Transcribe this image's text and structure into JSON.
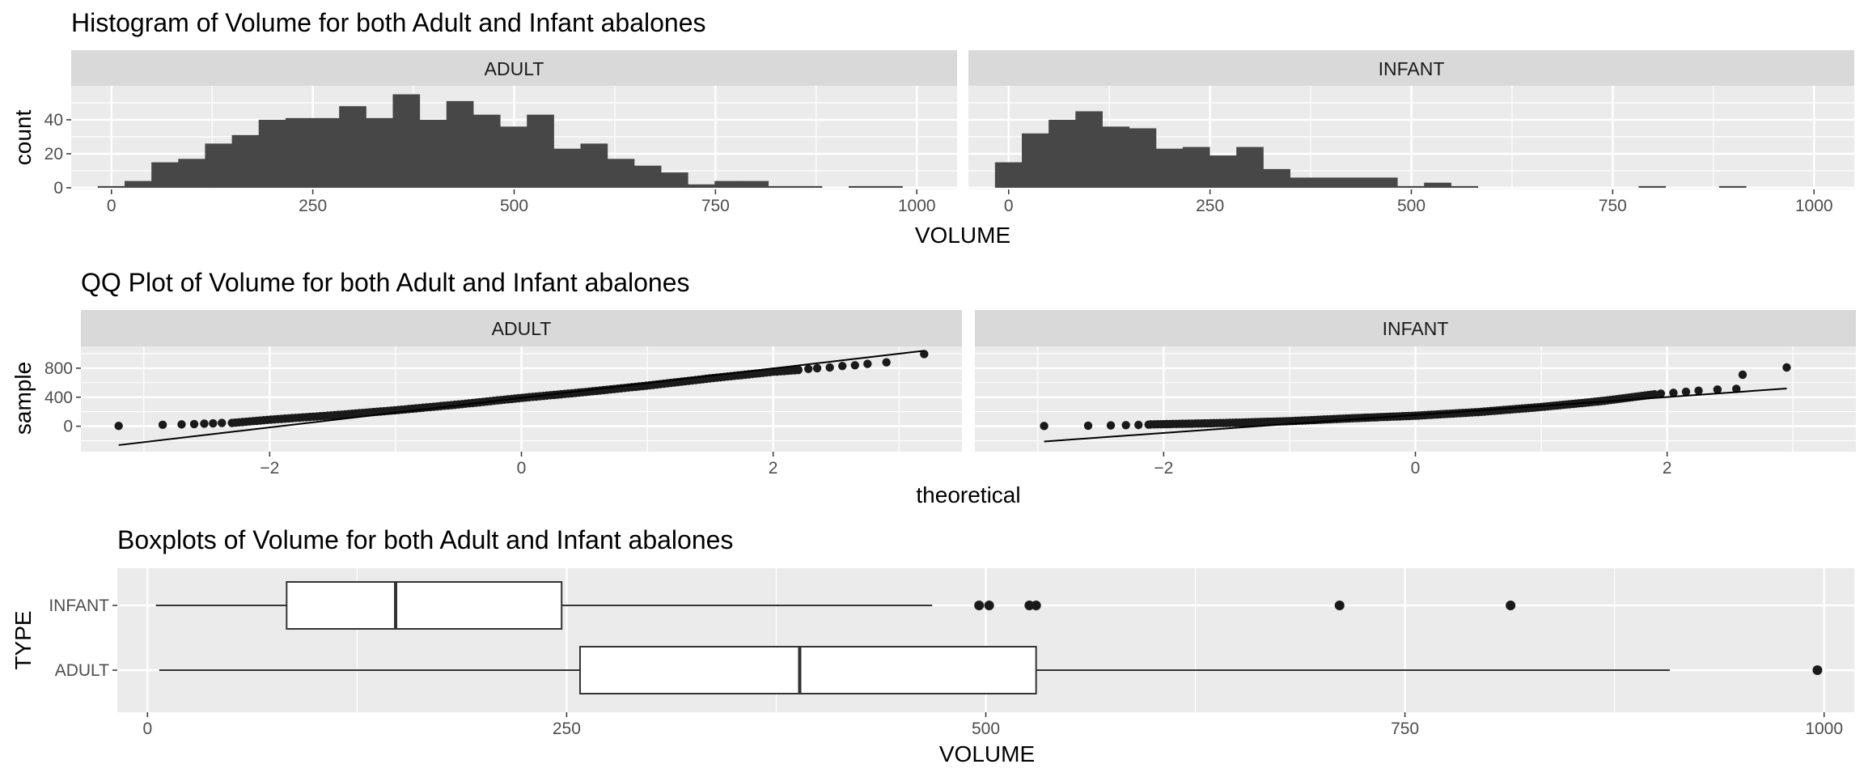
{
  "colors": {
    "panel_bg": "#EBEBEB",
    "strip_bg": "#D9D9D9",
    "grid": "#FFFFFF",
    "bar_fill": "#474747",
    "point": "#1a1a1a",
    "line": "#000000",
    "box_fill": "#FFFFFF"
  },
  "chart_data": [
    {
      "type": "bar",
      "subtype": "histogram",
      "title": "Histogram of Volume for both Adult and Infant abalones",
      "xlabel": "VOLUME",
      "ylabel": "count",
      "xlim": [
        -50,
        1050
      ],
      "ylim": [
        0,
        60
      ],
      "x_ticks": [
        0,
        250,
        500,
        750,
        1000
      ],
      "y_ticks": [
        0,
        20,
        40
      ],
      "bin_width": 33.3,
      "grid": true,
      "facets": [
        {
          "name": "ADULT",
          "bin_start": -17,
          "counts": [
            1,
            4,
            15,
            17,
            26,
            31,
            40,
            41,
            41,
            48,
            41,
            55,
            40,
            51,
            43,
            36,
            43,
            23,
            26,
            17,
            13,
            9,
            2,
            4,
            4,
            1,
            1,
            0,
            1,
            1
          ]
        },
        {
          "name": "INFANT",
          "bin_start": -17,
          "counts": [
            15,
            32,
            40,
            45,
            36,
            35,
            23,
            24,
            19,
            24,
            11,
            6,
            6,
            6,
            6,
            1,
            3,
            1,
            0,
            0,
            0,
            0,
            0,
            0,
            1,
            0,
            0,
            1,
            0,
            0
          ]
        }
      ]
    },
    {
      "type": "scatter",
      "subtype": "qq",
      "title": "QQ Plot of Volume for both Adult and Infant abalones",
      "xlabel": "theoretical",
      "ylabel": "sample",
      "xlim": [
        -3.5,
        3.5
      ],
      "ylim": [
        -350,
        1100
      ],
      "x_ticks": [
        -2,
        0,
        2
      ],
      "y_ticks": [
        0,
        400,
        800
      ],
      "grid": true,
      "facets": [
        {
          "name": "ADULT",
          "n": 1000,
          "low_points": [
            [
              -3.2,
              5
            ],
            [
              -2.85,
              20
            ],
            [
              -2.7,
              25
            ],
            [
              -2.6,
              30
            ],
            [
              -2.52,
              35
            ],
            [
              -2.45,
              40
            ],
            [
              -2.38,
              45
            ]
          ],
          "high_points": [
            [
              2.2,
              780
            ],
            [
              2.28,
              790
            ],
            [
              2.35,
              800
            ],
            [
              2.45,
              810
            ],
            [
              2.55,
              830
            ],
            [
              2.65,
              840
            ],
            [
              2.75,
              860
            ],
            [
              2.9,
              880
            ],
            [
              3.2,
              995
            ]
          ],
          "quantile_anchors": [
            [
              -2.3,
              45
            ],
            [
              -2.0,
              90
            ],
            [
              -1.5,
              150
            ],
            [
              -1.0,
              220
            ],
            [
              -0.5,
              300
            ],
            [
              0,
              390
            ],
            [
              0.5,
              470
            ],
            [
              1.0,
              560
            ],
            [
              1.5,
              660
            ],
            [
              2.0,
              750
            ],
            [
              2.2,
              775
            ]
          ],
          "ref_line": [
            [
              -3.2,
              -260
            ],
            [
              3.2,
              1040
            ]
          ]
        },
        {
          "name": "INFANT",
          "n": 600,
          "low_points": [
            [
              -2.95,
              3
            ],
            [
              -2.6,
              8
            ],
            [
              -2.42,
              12
            ],
            [
              -2.3,
              15
            ],
            [
              -2.2,
              18
            ],
            [
              -2.12,
              22
            ]
          ],
          "high_points": [
            [
              1.95,
              450
            ],
            [
              2.05,
              460
            ],
            [
              2.15,
              475
            ],
            [
              2.25,
              490
            ],
            [
              2.4,
              505
            ],
            [
              2.55,
              515
            ],
            [
              2.6,
              710
            ],
            [
              2.95,
              810
            ]
          ],
          "quantile_anchors": [
            [
              -2.1,
              25
            ],
            [
              -1.5,
              45
            ],
            [
              -1.0,
              70
            ],
            [
              -0.5,
              110
            ],
            [
              0,
              145
            ],
            [
              0.5,
              195
            ],
            [
              1.0,
              265
            ],
            [
              1.5,
              350
            ],
            [
              1.9,
              440
            ]
          ],
          "ref_line": [
            [
              -2.95,
              -210
            ],
            [
              2.95,
              520
            ]
          ]
        }
      ]
    },
    {
      "type": "box",
      "title": "Boxplots of Volume for both Adult and Infant abalones",
      "xlabel": "VOLUME",
      "ylabel": "TYPE",
      "xlim": [
        -18,
        1018
      ],
      "x_ticks": [
        0,
        250,
        500,
        750,
        1000
      ],
      "categories": [
        "INFANT",
        "ADULT"
      ],
      "grid": true,
      "boxes": [
        {
          "name": "INFANT",
          "whisker_low": 5,
          "q1": 83,
          "median": 148,
          "q3": 247,
          "whisker_high": 468,
          "outliers": [
            496,
            502,
            526,
            530,
            711,
            813
          ]
        },
        {
          "name": "ADULT",
          "whisker_low": 7,
          "q1": 258,
          "median": 389,
          "q3": 530,
          "whisker_high": 908,
          "outliers": [
            996
          ]
        }
      ]
    }
  ]
}
